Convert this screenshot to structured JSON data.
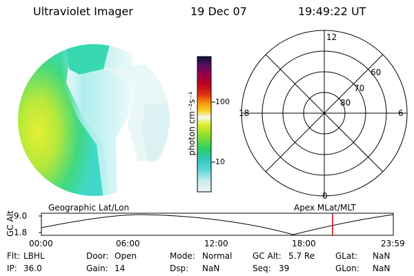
{
  "header": {
    "instrument": "Ultraviolet Imager",
    "date": "19 Dec 07",
    "time": "19:49:22 UT"
  },
  "colorbar": {
    "label": "photon cm⁻²s⁻¹",
    "ticks": [
      "100",
      "10"
    ]
  },
  "polar": {
    "mlt_labels": [
      "12",
      "18",
      "6",
      "0"
    ],
    "lat_labels": [
      "60",
      "70",
      "80"
    ]
  },
  "track": {
    "axis_label": "GC Alt",
    "y_ticks": [
      "9.0",
      "1.8"
    ],
    "left_title": "Geographic Lat/Lon",
    "right_title": "Apex MLat/MLT",
    "x_ticks": [
      "00:00",
      "06:00",
      "12:00",
      "18:00",
      "23:59"
    ],
    "marker_color": "#cc0000"
  },
  "status": {
    "flt": {
      "label": "Flt:",
      "value": "LBHL"
    },
    "ip": {
      "label": "IP:",
      "value": "36.0"
    },
    "door": {
      "label": "Door:",
      "value": "Open"
    },
    "gain": {
      "label": "Gain:",
      "value": "14"
    },
    "mode": {
      "label": "Mode:",
      "value": "Normal"
    },
    "dsp": {
      "label": "Dsp:",
      "value": "NaN"
    },
    "gcalt": {
      "label": "GC Alt:",
      "value": "5.7 Re"
    },
    "seq": {
      "label": "Seq:",
      "value": "39"
    },
    "glat": {
      "label": "GLat:",
      "value": "NaN"
    },
    "glon": {
      "label": "GLon:",
      "value": "NaN"
    }
  }
}
